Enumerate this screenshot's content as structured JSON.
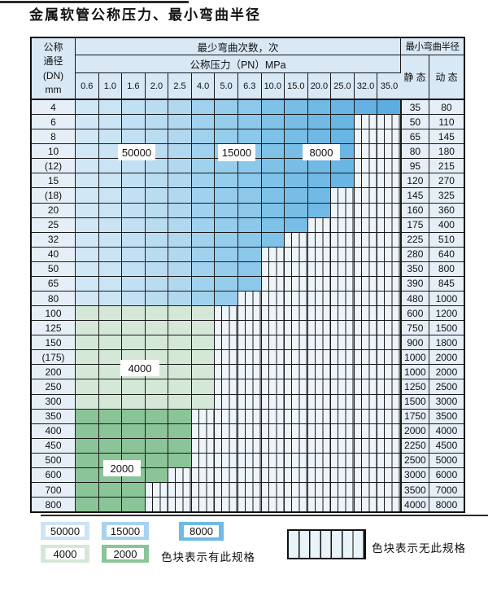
{
  "title": "金属软管公称压力、最小弯曲半径",
  "table": {
    "header": {
      "dn_lines": [
        "公称",
        "通径",
        "(DN)",
        "mm"
      ],
      "bend_cycles": "最少弯曲次数，次",
      "pressure": "公称压力（PN）MPa",
      "min_radius": "最小弯曲半径",
      "static_label": "静 态",
      "dynamic_label": "动 态",
      "pressures": [
        "0.6",
        "1.0",
        "1.6",
        "2.0",
        "2.5",
        "4.0",
        "5.0",
        "6.3",
        "10.0",
        "15.0",
        "20.0",
        "25.0",
        "32.0",
        "35.0"
      ]
    },
    "zone_labels": [
      "50000",
      "15000",
      "8000",
      "4000",
      "2000"
    ],
    "rows": [
      {
        "dn": "4",
        "colored": 14,
        "band": "blue",
        "static": "35",
        "dynamic": "80"
      },
      {
        "dn": "6",
        "colored": 12,
        "band": "blue",
        "static": "50",
        "dynamic": "110"
      },
      {
        "dn": "8",
        "colored": 12,
        "band": "blue",
        "static": "65",
        "dynamic": "145"
      },
      {
        "dn": "10",
        "colored": 12,
        "band": "blue",
        "static": "80",
        "dynamic": "180"
      },
      {
        "dn": "(12)",
        "colored": 12,
        "band": "blue",
        "static": "95",
        "dynamic": "215"
      },
      {
        "dn": "15",
        "colored": 12,
        "band": "blue",
        "static": "120",
        "dynamic": "270"
      },
      {
        "dn": "(18)",
        "colored": 11,
        "band": "blue",
        "static": "145",
        "dynamic": "325"
      },
      {
        "dn": "20",
        "colored": 11,
        "band": "blue",
        "static": "160",
        "dynamic": "360"
      },
      {
        "dn": "25",
        "colored": 10,
        "band": "blue",
        "static": "175",
        "dynamic": "400"
      },
      {
        "dn": "32",
        "colored": 9,
        "band": "blue",
        "static": "225",
        "dynamic": "510"
      },
      {
        "dn": "40",
        "colored": 8,
        "band": "blue",
        "static": "280",
        "dynamic": "640"
      },
      {
        "dn": "50",
        "colored": 8,
        "band": "blue",
        "static": "350",
        "dynamic": "800"
      },
      {
        "dn": "65",
        "colored": 8,
        "band": "blue",
        "static": "390",
        "dynamic": "845"
      },
      {
        "dn": "80",
        "colored": 7,
        "band": "blue",
        "static": "480",
        "dynamic": "1000"
      },
      {
        "dn": "100",
        "colored": 6,
        "band": "green_light",
        "static": "600",
        "dynamic": "1200"
      },
      {
        "dn": "125",
        "colored": 6,
        "band": "green_light",
        "static": "750",
        "dynamic": "1500"
      },
      {
        "dn": "150",
        "colored": 6,
        "band": "green_light",
        "static": "900",
        "dynamic": "1800"
      },
      {
        "dn": "(175)",
        "colored": 6,
        "band": "green_light",
        "static": "1000",
        "dynamic": "2000"
      },
      {
        "dn": "200",
        "colored": 6,
        "band": "green_light",
        "static": "1000",
        "dynamic": "2000"
      },
      {
        "dn": "250",
        "colored": 6,
        "band": "green_light",
        "static": "1250",
        "dynamic": "2500"
      },
      {
        "dn": "300",
        "colored": 6,
        "band": "green_light",
        "static": "1500",
        "dynamic": "3000"
      },
      {
        "dn": "350",
        "colored": 5,
        "band": "green_dark",
        "static": "1750",
        "dynamic": "3500"
      },
      {
        "dn": "400",
        "colored": 5,
        "band": "green_dark",
        "static": "2000",
        "dynamic": "4000"
      },
      {
        "dn": "450",
        "colored": 5,
        "band": "green_dark",
        "static": "2250",
        "dynamic": "4500"
      },
      {
        "dn": "500",
        "colored": 5,
        "band": "green_dark",
        "static": "2500",
        "dynamic": "5000"
      },
      {
        "dn": "600",
        "colored": 4,
        "band": "green_dark",
        "static": "3000",
        "dynamic": "6000"
      },
      {
        "dn": "700",
        "colored": 3,
        "band": "green_dark",
        "static": "3500",
        "dynamic": "7000"
      },
      {
        "dn": "800",
        "colored": 3,
        "band": "green_dark",
        "static": "4000",
        "dynamic": "8000"
      }
    ]
  },
  "legend": {
    "items": [
      {
        "label": "50000",
        "color": "#cde4f6"
      },
      {
        "label": "15000",
        "color": "#a6d3ef"
      },
      {
        "label": "8000",
        "color": "#6fbae6"
      },
      {
        "label": "4000",
        "color": "#d5e8d7"
      },
      {
        "label": "2000",
        "color": "#8bc497"
      }
    ],
    "has_spec_text": "色块表示有此规格",
    "no_spec_text": "色块表示无此规格"
  },
  "colors": {
    "blue_columns": [
      "#d0e7f6",
      "#cae4f5",
      "#c2e0f3",
      "#badcf1",
      "#b2d8ef",
      "#a0d2ee",
      "#96cdec",
      "#8cc8ea",
      "#7ec2e8",
      "#77bde6",
      "#70b9e5",
      "#69b5e3",
      "#63b1e2",
      "#5dade0"
    ],
    "green_light": "#d5e8d7",
    "green_dark": "#8bc497",
    "no_spec_bg": "#edf4fa",
    "grid": "#1a1a1a"
  }
}
